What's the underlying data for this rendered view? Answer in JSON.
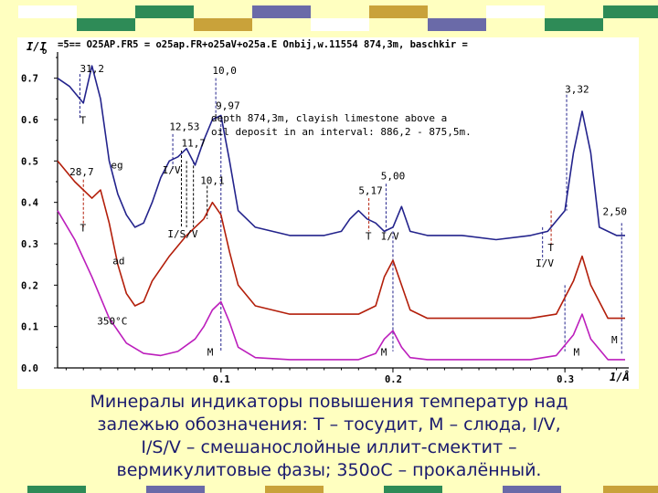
{
  "colors": {
    "background": "#ffffc0",
    "deco_a": "#2e8b57",
    "deco_b": "#6a6aa8",
    "deco_c": "#c9a23a",
    "deco_d": "#ffffff",
    "blue": "#23238c",
    "red": "#b31e0a",
    "magenta": "#bc1ebc",
    "caption": "#1a1a6e"
  },
  "chart_data": {
    "type": "line",
    "header": "=5== O25AP.FR5 = o25ap.FR+o25aV+o25a.E Onbij,w.11554 874,3m, baschkir  =",
    "ylabel": "I/I",
    "ylabel_sub": "o",
    "xlabel": "1/Å",
    "xlim": [
      0.005,
      0.335
    ],
    "ylim": [
      0,
      0.75
    ],
    "x_ticks": [
      0.1,
      0.2,
      0.3
    ],
    "x_tick_labels": [
      "0.1",
      "0.2",
      "0.3"
    ],
    "y_ticks": [
      0,
      0.1,
      0.2,
      0.3,
      0.4,
      0.5,
      0.6,
      0.7
    ],
    "y_tick_labels": [
      "0.0",
      "0.1",
      "0.2",
      "0.3",
      "0.4",
      "0.5",
      "0.6",
      "0.7"
    ],
    "note_lines": [
      "depth 874,3m, clayish limestone above a",
      "oil deposit in an interval: 886,2 - 875,5m."
    ],
    "series": [
      {
        "name": "eg",
        "color": "#23238c",
        "x": [
          0.005,
          0.012,
          0.02,
          0.025,
          0.03,
          0.035,
          0.04,
          0.045,
          0.05,
          0.055,
          0.06,
          0.065,
          0.07,
          0.075,
          0.08,
          0.085,
          0.09,
          0.095,
          0.1,
          0.105,
          0.11,
          0.12,
          0.13,
          0.14,
          0.15,
          0.16,
          0.17,
          0.175,
          0.18,
          0.185,
          0.19,
          0.195,
          0.2,
          0.205,
          0.21,
          0.22,
          0.24,
          0.26,
          0.28,
          0.29,
          0.3,
          0.305,
          0.31,
          0.315,
          0.32,
          0.33,
          0.335
        ],
        "y": [
          0.7,
          0.68,
          0.64,
          0.73,
          0.65,
          0.5,
          0.42,
          0.37,
          0.34,
          0.35,
          0.4,
          0.46,
          0.5,
          0.51,
          0.53,
          0.49,
          0.55,
          0.6,
          0.61,
          0.5,
          0.38,
          0.34,
          0.33,
          0.32,
          0.32,
          0.32,
          0.33,
          0.36,
          0.38,
          0.36,
          0.35,
          0.33,
          0.34,
          0.39,
          0.33,
          0.32,
          0.32,
          0.31,
          0.32,
          0.33,
          0.38,
          0.52,
          0.62,
          0.52,
          0.34,
          0.32,
          0.32
        ]
      },
      {
        "name": "ad",
        "color": "#b31e0a",
        "x": [
          0.005,
          0.015,
          0.025,
          0.03,
          0.035,
          0.04,
          0.045,
          0.05,
          0.055,
          0.06,
          0.07,
          0.08,
          0.09,
          0.095,
          0.1,
          0.105,
          0.11,
          0.12,
          0.14,
          0.16,
          0.18,
          0.19,
          0.195,
          0.2,
          0.205,
          0.21,
          0.22,
          0.24,
          0.26,
          0.28,
          0.295,
          0.305,
          0.31,
          0.315,
          0.325,
          0.335
        ],
        "y": [
          0.5,
          0.45,
          0.41,
          0.43,
          0.35,
          0.25,
          0.18,
          0.15,
          0.16,
          0.21,
          0.27,
          0.32,
          0.36,
          0.4,
          0.37,
          0.28,
          0.2,
          0.15,
          0.13,
          0.13,
          0.13,
          0.15,
          0.22,
          0.26,
          0.2,
          0.14,
          0.12,
          0.12,
          0.12,
          0.12,
          0.13,
          0.21,
          0.27,
          0.2,
          0.12,
          0.12
        ]
      },
      {
        "name": "350°C",
        "color": "#bc1ebc",
        "x": [
          0.005,
          0.015,
          0.025,
          0.035,
          0.045,
          0.055,
          0.065,
          0.075,
          0.085,
          0.09,
          0.095,
          0.1,
          0.105,
          0.11,
          0.12,
          0.14,
          0.16,
          0.18,
          0.19,
          0.195,
          0.2,
          0.205,
          0.21,
          0.22,
          0.24,
          0.26,
          0.28,
          0.295,
          0.305,
          0.31,
          0.315,
          0.325,
          0.335
        ],
        "y": [
          0.38,
          0.31,
          0.22,
          0.12,
          0.06,
          0.035,
          0.03,
          0.04,
          0.07,
          0.1,
          0.14,
          0.16,
          0.11,
          0.05,
          0.025,
          0.02,
          0.02,
          0.02,
          0.035,
          0.07,
          0.09,
          0.05,
          0.025,
          0.02,
          0.02,
          0.02,
          0.02,
          0.03,
          0.08,
          0.13,
          0.07,
          0.02,
          0.02
        ]
      }
    ],
    "annotations": [
      {
        "text": "31,2",
        "x": 0.018,
        "y": 0.715
      },
      {
        "text": "10,0",
        "x": 0.095,
        "y": 0.71
      },
      {
        "text": "9,97",
        "x": 0.097,
        "y": 0.625
      },
      {
        "text": "12,53",
        "x": 0.07,
        "y": 0.575
      },
      {
        "text": "11,7",
        "x": 0.077,
        "y": 0.535
      },
      {
        "text": "eg",
        "x": 0.036,
        "y": 0.482
      },
      {
        "text": "I/V",
        "x": 0.066,
        "y": 0.47
      },
      {
        "text": "28,7",
        "x": 0.012,
        "y": 0.465
      },
      {
        "text": "10,1",
        "x": 0.088,
        "y": 0.445
      },
      {
        "text": "T",
        "x": 0.018,
        "y": 0.59
      },
      {
        "text": "T",
        "x": 0.018,
        "y": 0.33
      },
      {
        "text": "I/S/V",
        "x": 0.069,
        "y": 0.315
      },
      {
        "text": "ad",
        "x": 0.037,
        "y": 0.25
      },
      {
        "text": "350°C",
        "x": 0.028,
        "y": 0.105
      },
      {
        "text": "3,32",
        "x": 0.3,
        "y": 0.665
      },
      {
        "text": "5,00",
        "x": 0.193,
        "y": 0.455
      },
      {
        "text": "5,17",
        "x": 0.18,
        "y": 0.42
      },
      {
        "text": "T",
        "x": 0.184,
        "y": 0.31
      },
      {
        "text": "I/V",
        "x": 0.193,
        "y": 0.31
      },
      {
        "text": "T",
        "x": 0.29,
        "y": 0.282
      },
      {
        "text": "I/V",
        "x": 0.283,
        "y": 0.245
      },
      {
        "text": "2,50",
        "x": 0.322,
        "y": 0.37
      },
      {
        "text": "M",
        "x": 0.092,
        "y": 0.03
      },
      {
        "text": "M",
        "x": 0.193,
        "y": 0.03
      },
      {
        "text": "M",
        "x": 0.305,
        "y": 0.03
      },
      {
        "text": "M",
        "x": 0.327,
        "y": 0.06
      }
    ],
    "dashed_markers": [
      {
        "x": 0.018,
        "y0": 0.6,
        "y1": 0.71,
        "color": "#23238c"
      },
      {
        "x": 0.097,
        "y0": 0.61,
        "y1": 0.7,
        "color": "#23238c"
      },
      {
        "x": 0.1,
        "y0": 0.04,
        "y1": 0.6,
        "color": "#23238c"
      },
      {
        "x": 0.072,
        "y0": 0.48,
        "y1": 0.565,
        "color": "#23238c"
      },
      {
        "x": 0.077,
        "y0": 0.34,
        "y1": 0.525,
        "color": "#000000"
      },
      {
        "x": 0.08,
        "y0": 0.34,
        "y1": 0.5,
        "color": "#000000"
      },
      {
        "x": 0.084,
        "y0": 0.34,
        "y1": 0.5,
        "color": "#000000"
      },
      {
        "x": 0.092,
        "y0": 0.36,
        "y1": 0.44,
        "color": "#000000"
      },
      {
        "x": 0.02,
        "y0": 0.34,
        "y1": 0.455,
        "color": "#b31e0a"
      },
      {
        "x": 0.186,
        "y0": 0.33,
        "y1": 0.41,
        "color": "#b31e0a"
      },
      {
        "x": 0.196,
        "y0": 0.33,
        "y1": 0.445,
        "color": "#23238c"
      },
      {
        "x": 0.2,
        "y0": 0.04,
        "y1": 0.33,
        "color": "#23238c"
      },
      {
        "x": 0.292,
        "y0": 0.295,
        "y1": 0.38,
        "color": "#b31e0a"
      },
      {
        "x": 0.287,
        "y0": 0.26,
        "y1": 0.34,
        "color": "#23238c"
      },
      {
        "x": 0.301,
        "y0": 0.38,
        "y1": 0.66,
        "color": "#23238c"
      },
      {
        "x": 0.3,
        "y0": 0.04,
        "y1": 0.2,
        "color": "#23238c"
      },
      {
        "x": 0.333,
        "y0": 0.03,
        "y1": 0.35,
        "color": "#23238c"
      }
    ]
  },
  "caption_lines": [
    "Минералы индикаторы повышения температур над",
    "залежью обозначения: Т – тосудит, М – слюда, I/V,",
    "I/S/V – смешанослойные иллит-смектит –",
    "вермикулитовые фазы; 350оС – прокалённый."
  ]
}
